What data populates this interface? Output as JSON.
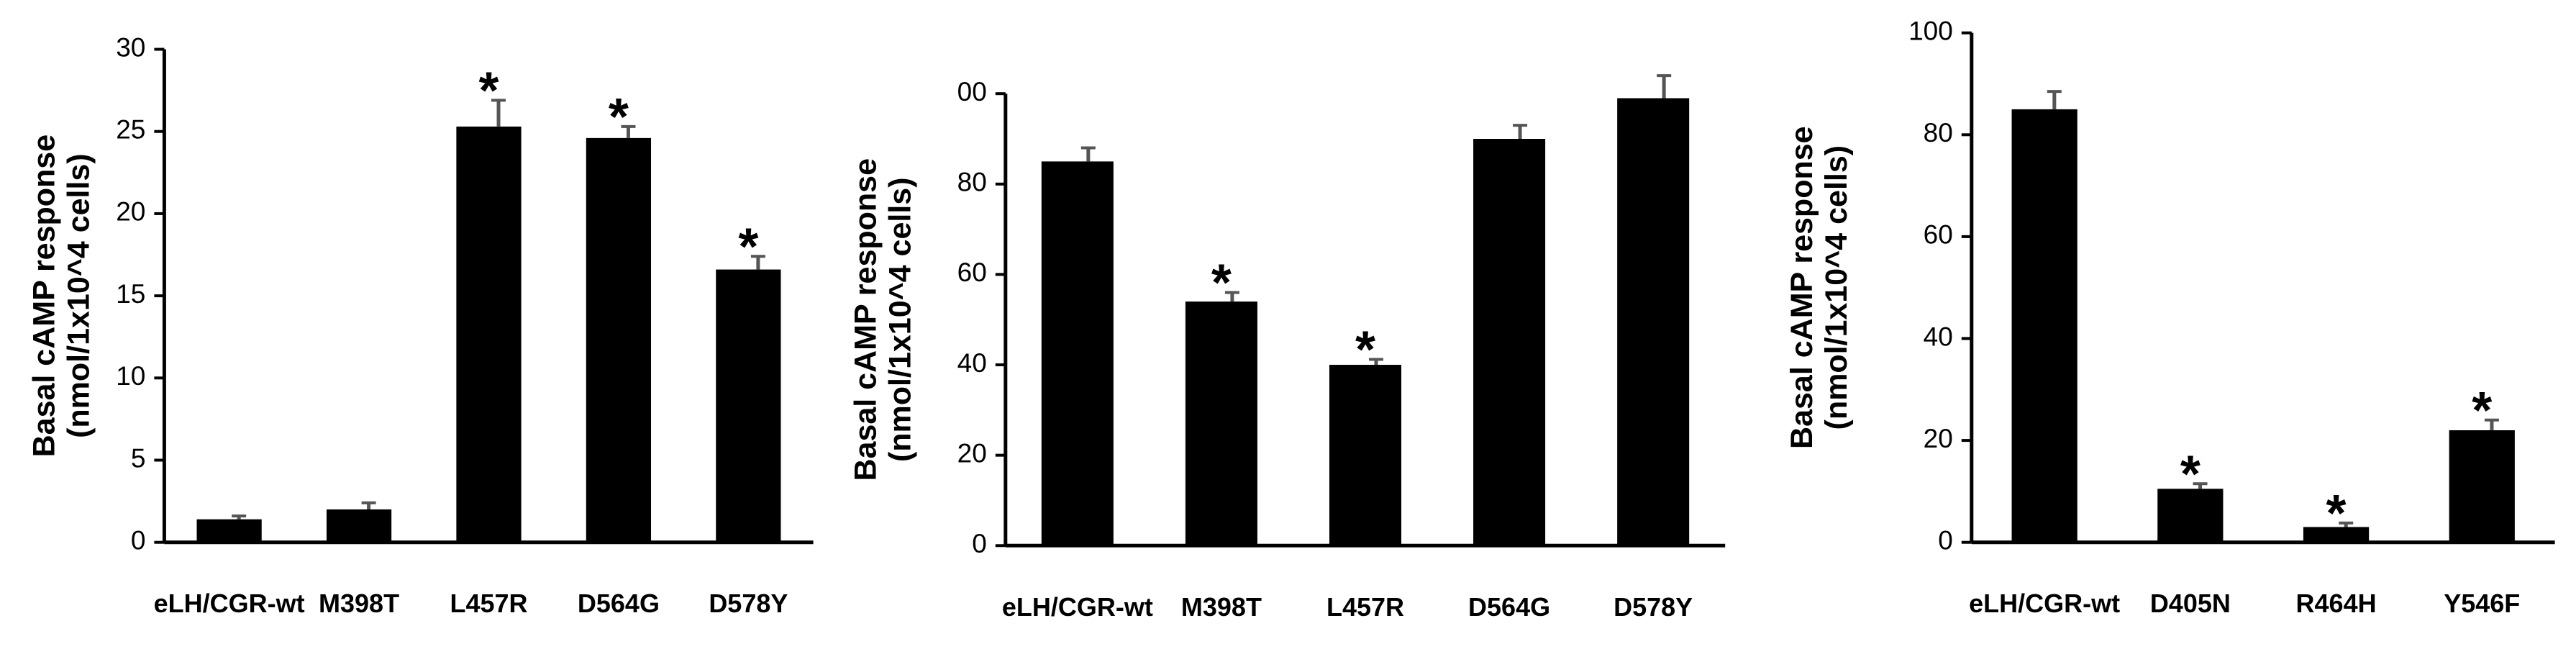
{
  "chart_data": [
    {
      "type": "bar",
      "ylabel": [
        "Basal cAMP response",
        "(nmol/1x10^4 cells)"
      ],
      "categories": [
        "eLH/CGR-wt",
        "M398T",
        "L457R",
        "D564G",
        "D578Y"
      ],
      "values": [
        1.4,
        2.0,
        25.3,
        24.6,
        16.6
      ],
      "errors": [
        0.2,
        0.4,
        1.6,
        0.7,
        0.8
      ],
      "markers": [
        null,
        null,
        "*",
        "*",
        "*"
      ],
      "color": "#000000",
      "ylim": [
        0,
        30
      ],
      "yticks": [
        0,
        5,
        10,
        15,
        20,
        25,
        30
      ]
    },
    {
      "type": "bar",
      "ylabel": [
        "Basal cAMP response",
        "(nmol/1x10^4 cells)"
      ],
      "categories": [
        "eLH/CGR-wt",
        "M398T",
        "L457R",
        "D564G",
        "D578Y"
      ],
      "values": [
        85,
        54,
        40,
        90,
        99
      ],
      "errors": [
        3,
        2,
        1.2,
        3,
        5
      ],
      "markers": [
        null,
        "*",
        "*",
        null,
        null
      ],
      "color": "#000000",
      "ylim": [
        0,
        100
      ],
      "yticks": [
        0,
        20,
        40,
        60,
        80,
        {
          "value": 100,
          "label": "00"
        }
      ]
    },
    {
      "type": "bar",
      "ylabel": [
        "Basal cAMP response",
        "(nmol/1x10^4 cells)"
      ],
      "categories": [
        "eLH/CGR-wt",
        "D405N",
        "R464H",
        "Y546F"
      ],
      "values": [
        85,
        10.5,
        3,
        22
      ],
      "errors": [
        3.5,
        1,
        0.8,
        2
      ],
      "markers": [
        null,
        "*",
        "*",
        "*"
      ],
      "color": "#000000",
      "ylim": [
        0,
        100
      ],
      "yticks": [
        0,
        20,
        40,
        60,
        80,
        100
      ]
    }
  ]
}
